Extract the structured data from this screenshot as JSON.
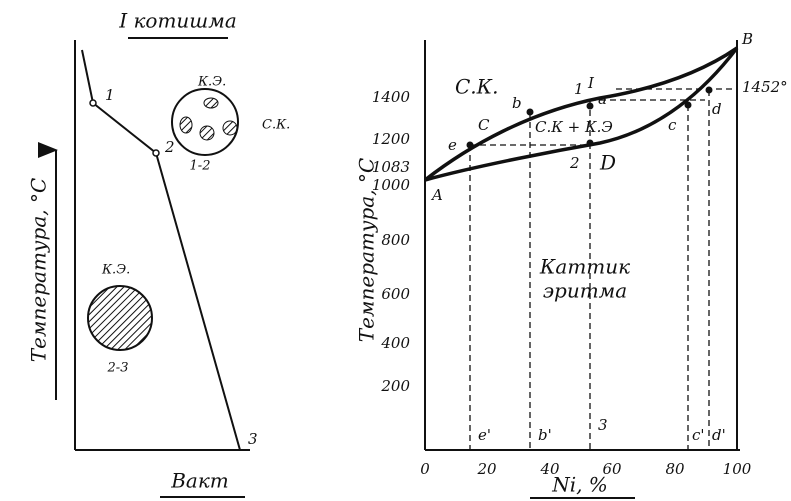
{
  "left": {
    "title": "I котишма",
    "points": [
      "1",
      "2",
      "3"
    ],
    "inset_top_labels": [
      "К.Э.",
      "С.К."
    ],
    "inset_top_range": "1-2",
    "inset_bottom_label": "К.Э.",
    "inset_bottom_range": "2-3",
    "y_label": "Температура, °С",
    "x_label": "Вакт"
  },
  "right": {
    "y_label": "Температура, °С",
    "x_label": "Ni, %",
    "y_ticks": [
      "1400",
      "1200",
      "1000",
      "800",
      "600",
      "400",
      "200"
    ],
    "x_ticks": [
      "0",
      "20",
      "40",
      "60",
      "80",
      "100"
    ],
    "melt_cu": "1083",
    "melt_ni": "1452°",
    "liquid_label": "С.К.",
    "mixed_label": "С.К + К.Э",
    "solid_label": [
      "Каттик",
      "эритма"
    ],
    "points": [
      "A",
      "B",
      "C",
      "b",
      "a",
      "1",
      "I",
      "2",
      "D",
      "e",
      "c",
      "d"
    ],
    "projections": [
      "e'",
      "b'",
      "3",
      "c'",
      "d'"
    ]
  }
}
